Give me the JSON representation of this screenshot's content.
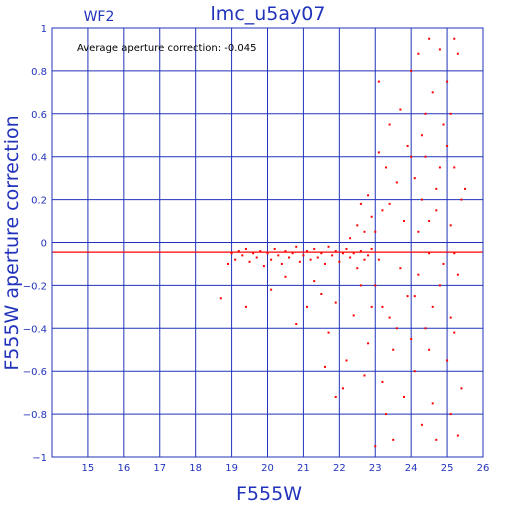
{
  "chart_data": {
    "type": "scatter",
    "title": "lmc_u5ay07",
    "panel_label": "WF2",
    "annotation": "Average aperture correction: -0.045",
    "xlabel": "F555W",
    "ylabel": "F555W aperture correction",
    "xlim": [
      14,
      26
    ],
    "ylim": [
      -1,
      1
    ],
    "x_ticks": [
      15,
      16,
      17,
      18,
      19,
      20,
      21,
      22,
      23,
      24,
      25,
      26
    ],
    "y_ticks": [
      -1,
      -0.8,
      -0.6,
      -0.4,
      -0.2,
      0,
      0.2,
      0.4,
      0.6,
      0.8,
      1
    ],
    "x_tick_labels": [
      "15",
      "16",
      "17",
      "18",
      "19",
      "20",
      "21",
      "22",
      "23",
      "24",
      "25",
      "26"
    ],
    "y_tick_labels": [
      "−1",
      "−0.8",
      "−0.6",
      "−0.4",
      "−0.2",
      "0",
      "0.2",
      "0.4",
      "0.6",
      "0.8",
      "1"
    ],
    "grid": true,
    "reference_lines": [
      {
        "type": "horizontal",
        "y": -0.045,
        "color": "#ff0000"
      }
    ],
    "colors": {
      "axes": "#2233bb",
      "grid": "#2233bb",
      "points": "#ff0000"
    },
    "series": [
      {
        "points": [
          [
            18.7,
            -0.26
          ],
          [
            18.9,
            -0.1
          ],
          [
            19.0,
            -0.05
          ],
          [
            19.1,
            -0.08
          ],
          [
            19.2,
            -0.04
          ],
          [
            19.3,
            -0.06
          ],
          [
            19.4,
            -0.03
          ],
          [
            19.5,
            -0.09
          ],
          [
            19.6,
            -0.05
          ],
          [
            19.7,
            -0.07
          ],
          [
            19.8,
            -0.04
          ],
          [
            19.9,
            -0.11
          ],
          [
            20.0,
            -0.05
          ],
          [
            20.1,
            -0.08
          ],
          [
            20.2,
            -0.03
          ],
          [
            20.3,
            -0.06
          ],
          [
            20.4,
            -0.1
          ],
          [
            20.5,
            -0.04
          ],
          [
            20.6,
            -0.07
          ],
          [
            20.7,
            -0.05
          ],
          [
            20.8,
            -0.02
          ],
          [
            20.9,
            -0.09
          ],
          [
            21.0,
            -0.06
          ],
          [
            21.1,
            -0.04
          ],
          [
            21.2,
            -0.08
          ],
          [
            21.3,
            -0.03
          ],
          [
            21.4,
            -0.07
          ],
          [
            21.5,
            -0.05
          ],
          [
            21.6,
            -0.1
          ],
          [
            21.7,
            -0.02
          ],
          [
            21.8,
            -0.06
          ],
          [
            21.9,
            -0.04
          ],
          [
            22.0,
            -0.09
          ],
          [
            22.1,
            -0.05
          ],
          [
            22.2,
            -0.03
          ],
          [
            22.3,
            -0.07
          ],
          [
            22.4,
            -0.05
          ],
          [
            22.5,
            -0.12
          ],
          [
            22.6,
            -0.04
          ],
          [
            22.7,
            -0.08
          ],
          [
            22.8,
            -0.06
          ],
          [
            22.9,
            -0.03
          ],
          [
            19.4,
            -0.3
          ],
          [
            20.1,
            -0.22
          ],
          [
            20.8,
            -0.38
          ],
          [
            21.3,
            -0.18
          ],
          [
            21.7,
            -0.42
          ],
          [
            21.9,
            -0.28
          ],
          [
            22.2,
            -0.55
          ],
          [
            22.4,
            -0.34
          ],
          [
            22.6,
            -0.2
          ],
          [
            22.8,
            -0.47
          ],
          [
            22.9,
            -0.3
          ],
          [
            21.5,
            -0.24
          ],
          [
            22.1,
            -0.68
          ],
          [
            21.9,
            -0.72
          ],
          [
            22.7,
            -0.62
          ],
          [
            20.5,
            -0.16
          ],
          [
            21.1,
            -0.3
          ],
          [
            21.6,
            -0.58
          ],
          [
            22.3,
            0.02
          ],
          [
            22.5,
            0.08
          ],
          [
            22.7,
            0.05
          ],
          [
            22.9,
            0.12
          ],
          [
            22.6,
            0.18
          ],
          [
            22.8,
            0.22
          ],
          [
            23.0,
            0.05
          ],
          [
            23.1,
            -0.08
          ],
          [
            23.2,
            0.15
          ],
          [
            23.0,
            -0.2
          ],
          [
            23.3,
            0.35
          ],
          [
            23.4,
            -0.35
          ],
          [
            23.1,
            0.42
          ],
          [
            23.5,
            -0.5
          ],
          [
            23.2,
            -0.65
          ],
          [
            23.6,
            0.28
          ],
          [
            23.4,
            0.55
          ],
          [
            23.7,
            -0.12
          ],
          [
            23.3,
            -0.8
          ],
          [
            23.8,
            0.1
          ],
          [
            23.5,
            -0.92
          ],
          [
            23.9,
            0.45
          ],
          [
            23.1,
            0.75
          ],
          [
            23.6,
            -0.4
          ],
          [
            23.8,
            -0.72
          ],
          [
            23.9,
            -0.25
          ],
          [
            23.0,
            -0.95
          ],
          [
            23.7,
            0.62
          ],
          [
            23.4,
            0.18
          ],
          [
            23.2,
            -0.3
          ],
          [
            24.0,
            0.8
          ],
          [
            24.1,
            0.3
          ],
          [
            24.2,
            -0.15
          ],
          [
            24.3,
            0.2
          ],
          [
            24.0,
            -0.45
          ],
          [
            24.4,
            0.6
          ],
          [
            24.1,
            -0.6
          ],
          [
            24.5,
            0.95
          ],
          [
            24.2,
            0.05
          ],
          [
            24.6,
            -0.3
          ],
          [
            24.3,
            -0.85
          ],
          [
            24.4,
            0.4
          ],
          [
            24.5,
            -0.05
          ],
          [
            24.6,
            0.7
          ],
          [
            24.7,
            0.15
          ],
          [
            24.3,
            0.5
          ],
          [
            24.8,
            -0.2
          ],
          [
            24.5,
            -0.5
          ],
          [
            24.7,
            0.25
          ],
          [
            24.9,
            0.55
          ],
          [
            24.6,
            -0.75
          ],
          [
            24.8,
            0.9
          ],
          [
            24.4,
            -0.4
          ],
          [
            24.9,
            -0.1
          ],
          [
            24.2,
            0.88
          ],
          [
            24.7,
            -0.92
          ],
          [
            24.5,
            0.1
          ],
          [
            24.1,
            -0.25
          ],
          [
            24.0,
            0.4
          ],
          [
            24.8,
            0.35
          ],
          [
            25.0,
            0.45
          ],
          [
            25.1,
            -0.35
          ],
          [
            25.2,
            0.95
          ],
          [
            25.3,
            -0.9
          ],
          [
            25.1,
            0.6
          ],
          [
            25.2,
            -0.05
          ],
          [
            25.0,
            -0.55
          ],
          [
            25.4,
            0.2
          ],
          [
            25.3,
            0.88
          ],
          [
            25.1,
            0.08
          ],
          [
            25.5,
            0.25
          ],
          [
            25.2,
            -0.42
          ],
          [
            25.0,
            0.75
          ],
          [
            25.4,
            -0.68
          ],
          [
            25.3,
            -0.15
          ],
          [
            25.1,
            -0.8
          ],
          [
            25.2,
            0.35
          ]
        ]
      }
    ]
  }
}
